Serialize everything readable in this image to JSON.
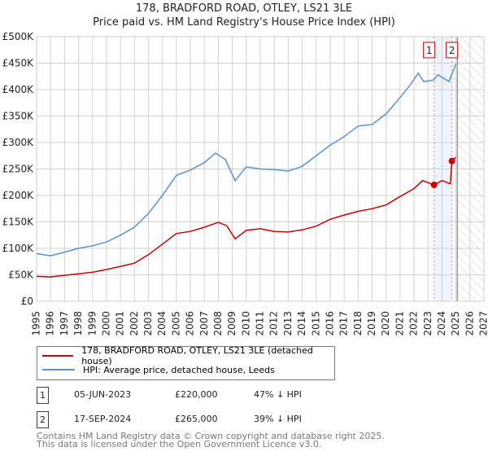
{
  "title": "178, BRADFORD ROAD, OTLEY, LS21 3LE",
  "subtitle": "Price paid vs. HM Land Registry's House Price Index (HPI)",
  "chart_data": {
    "type": "line",
    "xlim": [
      1995,
      2027
    ],
    "ylim": [
      0,
      500000
    ],
    "x_ticks": [
      "1995",
      "1996",
      "1997",
      "1998",
      "1999",
      "2000",
      "2001",
      "2002",
      "2003",
      "2004",
      "2005",
      "2006",
      "2007",
      "2008",
      "2009",
      "2010",
      "2011",
      "2012",
      "2013",
      "2014",
      "2015",
      "2016",
      "2017",
      "2018",
      "2019",
      "2020",
      "2021",
      "2022",
      "2023",
      "2024",
      "2025",
      "2026",
      "2027"
    ],
    "y_ticks": [
      "£0",
      "£50K",
      "£100K",
      "£150K",
      "£200K",
      "£250K",
      "£300K",
      "£350K",
      "£400K",
      "£450K",
      "£500K"
    ],
    "grid": true,
    "series": [
      {
        "name": "178, BRADFORD ROAD, OTLEY, LS21 3LE (detached house)",
        "color": "#cc0000",
        "x": [
          1995,
          1996,
          1997,
          1998,
          1999,
          2000,
          2001,
          2002,
          2003,
          2004,
          2005,
          2006,
          2007,
          2008,
          2008.6,
          2009.2,
          2010,
          2011,
          2012,
          2013,
          2014,
          2015,
          2016,
          2017,
          2018,
          2019,
          2020,
          2021,
          2022,
          2022.6,
          2023.43,
          2024,
          2024.6,
          2024.71,
          2025
        ],
        "y": [
          47000,
          46000,
          49000,
          52000,
          55000,
          60000,
          66000,
          72000,
          88000,
          108000,
          128000,
          132000,
          140000,
          149000,
          143000,
          118000,
          134000,
          137000,
          132000,
          131000,
          135000,
          142000,
          155000,
          163000,
          170000,
          175000,
          182000,
          198000,
          213000,
          228000,
          220000,
          228000,
          222000,
          265000,
          272000
        ]
      },
      {
        "name": "HPI: Average price, detached house, Leeds",
        "color": "#5b8fd6",
        "x": [
          1995,
          1996,
          1997,
          1998,
          1999,
          2000,
          2001,
          2002,
          2003,
          2004,
          2005,
          2006,
          2007,
          2007.8,
          2008.5,
          2009.2,
          2010,
          2011,
          2012,
          2013,
          2014,
          2015,
          2016,
          2017,
          2018,
          2019,
          2020,
          2021,
          2021.7,
          2022.3,
          2022.7,
          2023.4,
          2023.7,
          2024.5,
          2025
        ],
        "y": [
          90000,
          86000,
          93000,
          100000,
          105000,
          112000,
          125000,
          140000,
          166000,
          200000,
          238000,
          248000,
          262000,
          280000,
          268000,
          228000,
          254000,
          250000,
          249000,
          246000,
          255000,
          275000,
          295000,
          311000,
          331000,
          334000,
          354000,
          385000,
          408000,
          431000,
          415000,
          418000,
          428000,
          415000,
          449000
        ]
      }
    ],
    "annotations": [
      {
        "label": "1",
        "x": 2023.43
      },
      {
        "label": "2",
        "x": 2024.71
      }
    ],
    "forecast_hatch_from": 2025.1
  },
  "legend": [
    "178, BRADFORD ROAD, OTLEY, LS21 3LE (detached house)",
    "HPI: Average price, detached house, Leeds"
  ],
  "sales": [
    {
      "num": "1",
      "date": "05-JUN-2023",
      "price": "£220,000",
      "hpi": "47% ↓ HPI"
    },
    {
      "num": "2",
      "date": "17-SEP-2024",
      "price": "£265,000",
      "hpi": "39% ↓ HPI"
    }
  ],
  "footer": [
    "Contains HM Land Registry data © Crown copyright and database right 2025.",
    "This data is licensed under the Open Government Licence v3.0."
  ]
}
